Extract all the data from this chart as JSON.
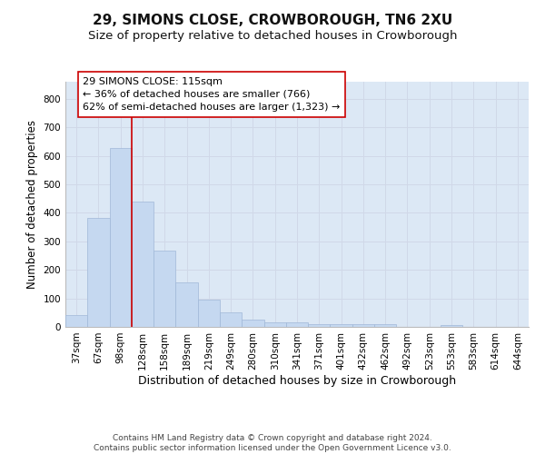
{
  "title1": "29, SIMONS CLOSE, CROWBOROUGH, TN6 2XU",
  "title2": "Size of property relative to detached houses in Crowborough",
  "xlabel": "Distribution of detached houses by size in Crowborough",
  "ylabel": "Number of detached properties",
  "categories": [
    "37sqm",
    "67sqm",
    "98sqm",
    "128sqm",
    "158sqm",
    "189sqm",
    "219sqm",
    "249sqm",
    "280sqm",
    "310sqm",
    "341sqm",
    "371sqm",
    "401sqm",
    "432sqm",
    "462sqm",
    "492sqm",
    "523sqm",
    "553sqm",
    "583sqm",
    "614sqm",
    "644sqm"
  ],
  "values": [
    42,
    382,
    627,
    438,
    268,
    155,
    94,
    50,
    27,
    15,
    15,
    11,
    11,
    11,
    9,
    0,
    0,
    7,
    0,
    0,
    0
  ],
  "bar_color": "#c5d8f0",
  "bar_edge_color": "#a0b8d8",
  "grid_color": "#d0d8e8",
  "background_color": "#dce8f5",
  "vline_x_idx": 2,
  "vline_color": "#cc0000",
  "annotation_text": "29 SIMONS CLOSE: 115sqm\n← 36% of detached houses are smaller (766)\n62% of semi-detached houses are larger (1,323) →",
  "annotation_box_color": "#ffffff",
  "annotation_box_edge": "#cc0000",
  "ylim": [
    0,
    860
  ],
  "yticks": [
    0,
    100,
    200,
    300,
    400,
    500,
    600,
    700,
    800
  ],
  "footer": "Contains HM Land Registry data © Crown copyright and database right 2024.\nContains public sector information licensed under the Open Government Licence v3.0.",
  "title1_fontsize": 11,
  "title2_fontsize": 9.5,
  "xlabel_fontsize": 9,
  "ylabel_fontsize": 8.5,
  "tick_fontsize": 7.5,
  "annotation_fontsize": 8,
  "footer_fontsize": 6.5
}
